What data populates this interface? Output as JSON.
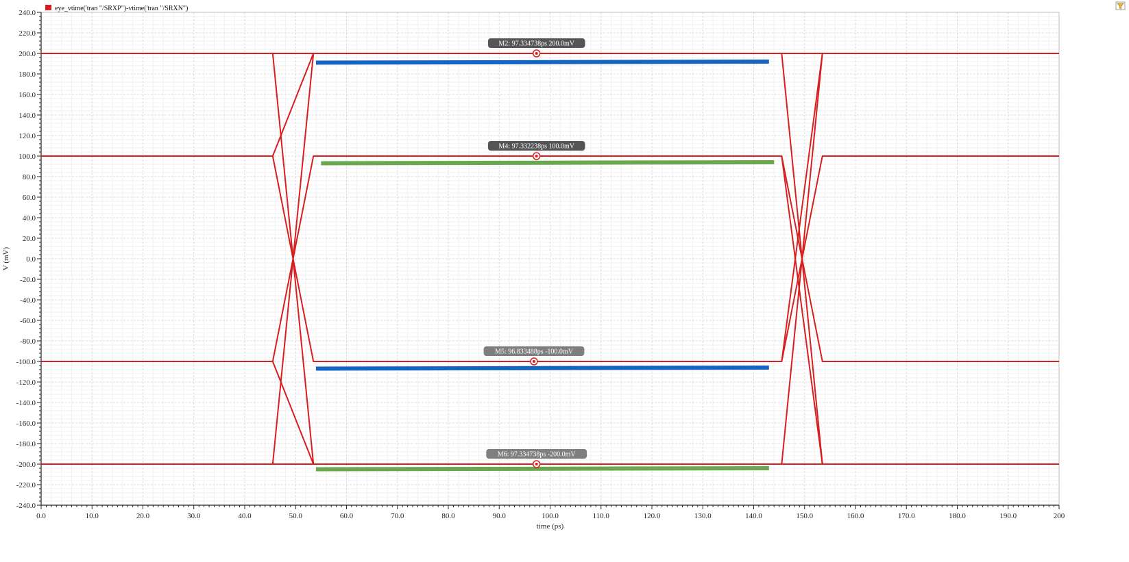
{
  "chart_data": {
    "type": "line",
    "legend": {
      "label": "eye_vtime('tran \"/SRXP\")-vtime('tran \"/SRXN\")",
      "color": "#d81e1e",
      "placement": "top-left"
    },
    "xlabel": "time (ps)",
    "ylabel": "V (mV)",
    "xlim": [
      0,
      200
    ],
    "ylim": [
      -240,
      240
    ],
    "x_ticks": [
      0,
      10,
      20,
      30,
      40,
      50,
      60,
      70,
      80,
      90,
      100,
      110,
      120,
      130,
      140,
      150,
      160,
      170,
      180,
      190,
      200
    ],
    "x_tick_labels": [
      "0.0",
      "10.0",
      "20.0",
      "30.0",
      "40.0",
      "50.0",
      "60.0",
      "70.0",
      "80.0",
      "90.0",
      "100.0",
      "110.0",
      "120.0",
      "130.0",
      "140.0",
      "150.0",
      "160.0",
      "170.0",
      "180.0",
      "190.0",
      "200"
    ],
    "y_ticks": [
      240,
      220,
      200,
      180,
      160,
      140,
      120,
      100,
      80,
      60,
      40,
      20,
      0,
      -20,
      -40,
      -60,
      -80,
      -100,
      -120,
      -140,
      -160,
      -180,
      -200,
      -220,
      -240
    ],
    "y_tick_labels": [
      "240.0",
      "220.0",
      "200.0",
      "180.0",
      "160.0",
      "140.0",
      "120.0",
      "100.0",
      "80.0",
      "60.0",
      "40.0",
      "20.0",
      "0.0",
      "-20.0",
      "-40.0",
      "-60.0",
      "-80.0",
      "-100.0",
      "-120.0",
      "-140.0",
      "-160.0",
      "-180.0",
      "-200.0",
      "-220.0",
      "-240.0"
    ],
    "grid": true,
    "series": [
      {
        "color": "#d81e1e",
        "points": [
          [
            0,
            200
          ],
          [
            200,
            200
          ]
        ]
      },
      {
        "color": "#d81e1e",
        "points": [
          [
            0,
            100
          ],
          [
            45.5,
            100
          ],
          [
            53.5,
            -100
          ],
          [
            145.5,
            -100
          ],
          [
            153.5,
            100
          ],
          [
            200,
            100
          ]
        ]
      },
      {
        "color": "#d81e1e",
        "points": [
          [
            0,
            -100
          ],
          [
            45.5,
            -100
          ],
          [
            53.5,
            100
          ],
          [
            145.5,
            100
          ],
          [
            153.5,
            -100
          ],
          [
            200,
            -100
          ]
        ]
      },
      {
        "color": "#d81e1e",
        "points": [
          [
            0,
            -200
          ],
          [
            200,
            -200
          ]
        ]
      },
      {
        "color": "#d81e1e",
        "points": [
          [
            45.5,
            200
          ],
          [
            53.5,
            -200
          ]
        ]
      },
      {
        "color": "#d81e1e",
        "points": [
          [
            45.5,
            -200
          ],
          [
            53.5,
            200
          ]
        ]
      },
      {
        "color": "#d81e1e",
        "points": [
          [
            145.5,
            200
          ],
          [
            153.5,
            -200
          ]
        ]
      },
      {
        "color": "#d81e1e",
        "points": [
          [
            145.5,
            -200
          ],
          [
            153.5,
            200
          ]
        ]
      },
      {
        "color": "#d81e1e",
        "points": [
          [
            45.5,
            100
          ],
          [
            53.5,
            200
          ]
        ]
      },
      {
        "color": "#d81e1e",
        "points": [
          [
            45.5,
            -100
          ],
          [
            53.5,
            -200
          ]
        ]
      },
      {
        "color": "#d81e1e",
        "points": [
          [
            145.5,
            100
          ],
          [
            153.5,
            -200
          ]
        ]
      },
      {
        "color": "#d81e1e",
        "points": [
          [
            145.5,
            -100
          ],
          [
            153.5,
            200
          ]
        ]
      }
    ],
    "eye_bars": [
      {
        "color": "#1565c0",
        "x": [
          54,
          143
        ],
        "y": [
          191,
          192
        ]
      },
      {
        "color": "#6aa84f",
        "x": [
          55,
          144
        ],
        "y": [
          93,
          94
        ]
      },
      {
        "color": "#1565c0",
        "x": [
          54,
          143
        ],
        "y": [
          -107,
          -106
        ]
      },
      {
        "color": "#6aa84f",
        "x": [
          54,
          143
        ],
        "y": [
          -205,
          -204
        ]
      }
    ],
    "markers": [
      {
        "label": "M2: 97.334738ps 200.0mV",
        "x": 97.334738,
        "y": 200,
        "style": "dark"
      },
      {
        "label": "M4: 97.332238ps 100.0mV",
        "x": 97.332238,
        "y": 100,
        "style": "dark"
      },
      {
        "label": "M5: 96.833488ps -100.0mV",
        "x": 96.833488,
        "y": -100,
        "style": "light"
      },
      {
        "label": "M6: 97.334738ps -200.0mV",
        "x": 97.334738,
        "y": -200,
        "style": "light"
      }
    ]
  }
}
